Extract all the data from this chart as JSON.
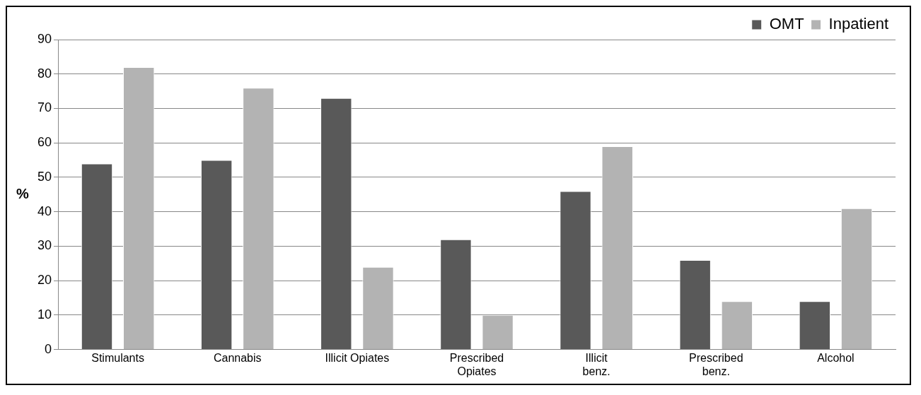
{
  "chart_data": {
    "type": "bar",
    "ylabel": "%",
    "categories": [
      "Stimulants",
      "Cannabis",
      "Illicit Opiates",
      "Prescribed\nOpiates",
      "Illicit\nbenz.",
      "Prescribed\nbenz.",
      "Alcohol"
    ],
    "series": [
      {
        "name": "OMT",
        "color": "#595959",
        "values": [
          54,
          55,
          73,
          32,
          46,
          26,
          14
        ]
      },
      {
        "name": "Inpatient",
        "color": "#b3b3b3",
        "values": [
          82,
          76,
          24,
          10,
          59,
          14,
          41
        ]
      }
    ],
    "ylim": [
      0,
      90
    ],
    "yticks": [
      0,
      10,
      20,
      30,
      40,
      50,
      60,
      70,
      80,
      90
    ],
    "grid": "y",
    "legend": "top right"
  }
}
